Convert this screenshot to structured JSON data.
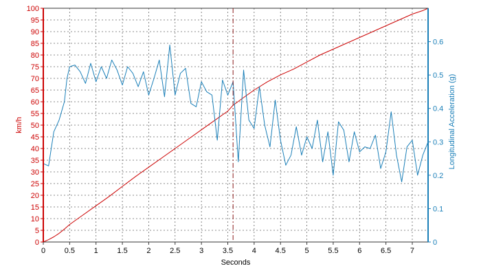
{
  "chart_data": {
    "type": "line",
    "xlabel": "Seconds",
    "y1label": "km/h",
    "y2label": "Longitudinal Acceleration (g)",
    "xlim": [
      0,
      7.3
    ],
    "y1lim": [
      0,
      100
    ],
    "y2lim": [
      0,
      0.7
    ],
    "x_ticks": [
      0,
      0.5,
      1,
      1.5,
      2,
      2.5,
      3,
      3.5,
      4,
      4.5,
      5,
      5.5,
      6,
      6.5,
      7
    ],
    "x_tick_labels": [
      "0",
      "0.5",
      "1",
      "1.5",
      "2",
      "2.5",
      "3",
      "3.5",
      "4",
      "4.5",
      "5",
      "5.5",
      "6",
      "6.5",
      "7"
    ],
    "y1_ticks": [
      0,
      5,
      10,
      15,
      20,
      25,
      30,
      35,
      40,
      45,
      50,
      55,
      60,
      65,
      70,
      75,
      80,
      85,
      90,
      95,
      100
    ],
    "y2_ticks": [
      0,
      0.1,
      0.2,
      0.3,
      0.4,
      0.5,
      0.6
    ],
    "y2_tick_labels": [
      "0",
      "0.1",
      "0.2",
      "0.3",
      "0.4",
      "0.5",
      "0.6"
    ],
    "grid": true,
    "marker_line_x": 3.6,
    "colors": {
      "speed": "#cc0000",
      "accel": "#1a7fb8",
      "marker": "#8b1a1a",
      "grid": "#666666",
      "frame": "#333333"
    },
    "series": [
      {
        "axis": "left",
        "x": [
          0,
          0.1,
          0.2,
          0.3,
          0.4,
          0.5,
          0.75,
          1.0,
          1.25,
          1.5,
          1.75,
          2.0,
          2.25,
          2.5,
          2.75,
          3.0,
          3.25,
          3.5,
          3.6,
          3.75,
          4.0,
          4.25,
          4.5,
          4.75,
          5.0,
          5.25,
          5.5,
          5.75,
          6.0,
          6.25,
          6.5,
          6.75,
          7.0,
          7.2,
          7.3
        ],
        "y": [
          0,
          1,
          2.2,
          3.7,
          5.5,
          7.5,
          11.5,
          15.5,
          19.5,
          23.8,
          28,
          32,
          36,
          40,
          44,
          48,
          52,
          56,
          58.5,
          61,
          65,
          68.5,
          71.5,
          74,
          77,
          80,
          82.5,
          85,
          87.5,
          90,
          92.5,
          95,
          97.5,
          99,
          100
        ]
      },
      {
        "axis": "right",
        "x": [
          0,
          0.1,
          0.2,
          0.3,
          0.4,
          0.45,
          0.5,
          0.6,
          0.7,
          0.8,
          0.9,
          1.0,
          1.1,
          1.2,
          1.3,
          1.4,
          1.5,
          1.6,
          1.7,
          1.8,
          1.9,
          2.0,
          2.1,
          2.2,
          2.3,
          2.4,
          2.5,
          2.6,
          2.7,
          2.8,
          2.9,
          3.0,
          3.1,
          3.2,
          3.3,
          3.4,
          3.5,
          3.6,
          3.7,
          3.8,
          3.9,
          4.0,
          4.1,
          4.2,
          4.3,
          4.4,
          4.5,
          4.6,
          4.7,
          4.8,
          4.9,
          5.0,
          5.1,
          5.2,
          5.3,
          5.4,
          5.5,
          5.6,
          5.7,
          5.8,
          5.9,
          6.0,
          6.1,
          6.2,
          6.3,
          6.4,
          6.5,
          6.6,
          6.7,
          6.8,
          6.9,
          7.0,
          7.1,
          7.2,
          7.3
        ],
        "y": [
          0.235,
          0.228,
          0.33,
          0.365,
          0.42,
          0.49,
          0.525,
          0.53,
          0.51,
          0.475,
          0.535,
          0.48,
          0.525,
          0.49,
          0.545,
          0.515,
          0.47,
          0.525,
          0.505,
          0.465,
          0.51,
          0.44,
          0.49,
          0.545,
          0.435,
          0.59,
          0.44,
          0.505,
          0.52,
          0.415,
          0.405,
          0.48,
          0.45,
          0.44,
          0.305,
          0.485,
          0.44,
          0.48,
          0.24,
          0.515,
          0.365,
          0.34,
          0.465,
          0.35,
          0.285,
          0.425,
          0.305,
          0.23,
          0.26,
          0.345,
          0.26,
          0.315,
          0.28,
          0.365,
          0.24,
          0.33,
          0.2,
          0.36,
          0.335,
          0.24,
          0.33,
          0.27,
          0.285,
          0.28,
          0.32,
          0.22,
          0.27,
          0.39,
          0.26,
          0.18,
          0.285,
          0.305,
          0.2,
          0.26,
          0.3
        ]
      }
    ]
  }
}
